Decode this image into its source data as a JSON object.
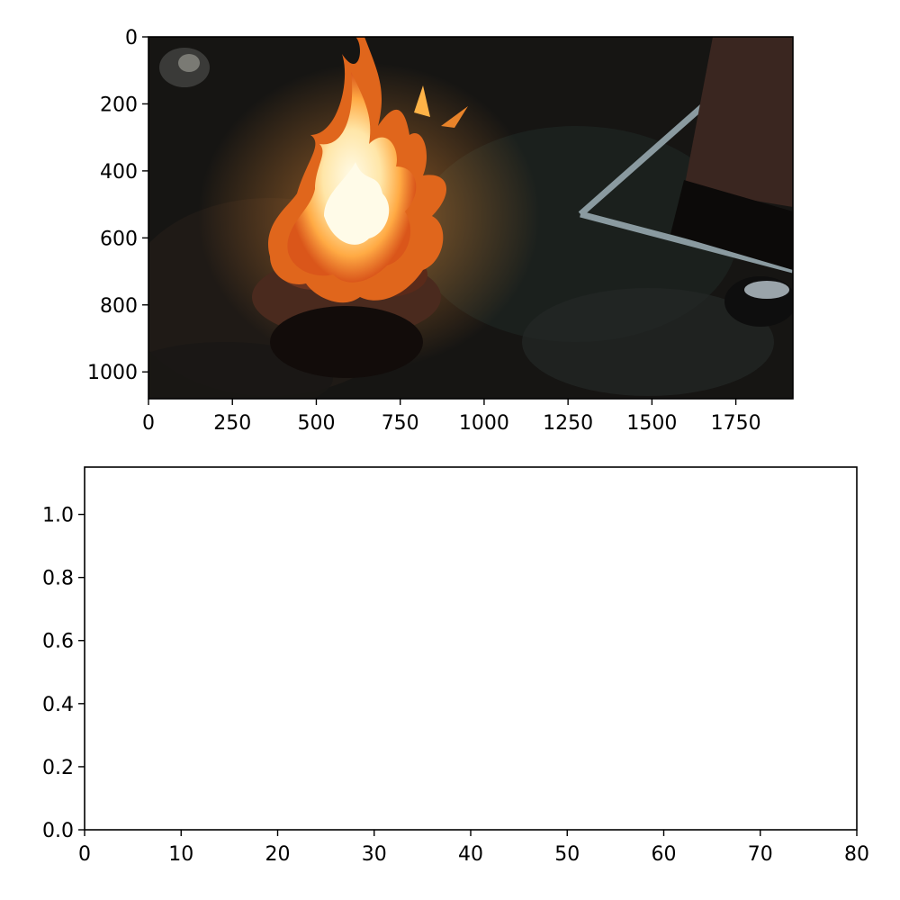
{
  "chart_data": [
    {
      "type": "image",
      "description_of_content": "photograph frame",
      "xlim": [
        0,
        1920
      ],
      "ylim": [
        1080,
        0
      ],
      "x_ticks": [
        0,
        250,
        500,
        750,
        1000,
        1250,
        1500,
        1750
      ],
      "y_ticks": [
        0,
        200,
        400,
        600,
        800,
        1000
      ],
      "x_tick_labels": [
        "0",
        "250",
        "500",
        "750",
        "1000",
        "1250",
        "1500",
        "1750"
      ],
      "y_tick_labels": [
        "0",
        "200",
        "400",
        "600",
        "800",
        "1000"
      ],
      "colors": {
        "background": "#161513",
        "flame_core": "#fff4d8",
        "flame_mid": "#ffb347",
        "flame_outer": "#e0661c",
        "ember": "#5a2a1a",
        "floor_line": "#8a9aa0"
      }
    },
    {
      "type": "line",
      "series": [],
      "xlim": [
        0,
        80
      ],
      "ylim": [
        0,
        1.15
      ],
      "x_ticks": [
        0,
        10,
        20,
        30,
        40,
        50,
        60,
        70,
        80
      ],
      "y_ticks": [
        0.0,
        0.2,
        0.4,
        0.6,
        0.8,
        1.0
      ],
      "x_tick_labels": [
        "0",
        "10",
        "20",
        "30",
        "40",
        "50",
        "60",
        "70",
        "80"
      ],
      "y_tick_labels": [
        "0.0",
        "0.2",
        "0.4",
        "0.6",
        "0.8",
        "1.0"
      ]
    }
  ]
}
